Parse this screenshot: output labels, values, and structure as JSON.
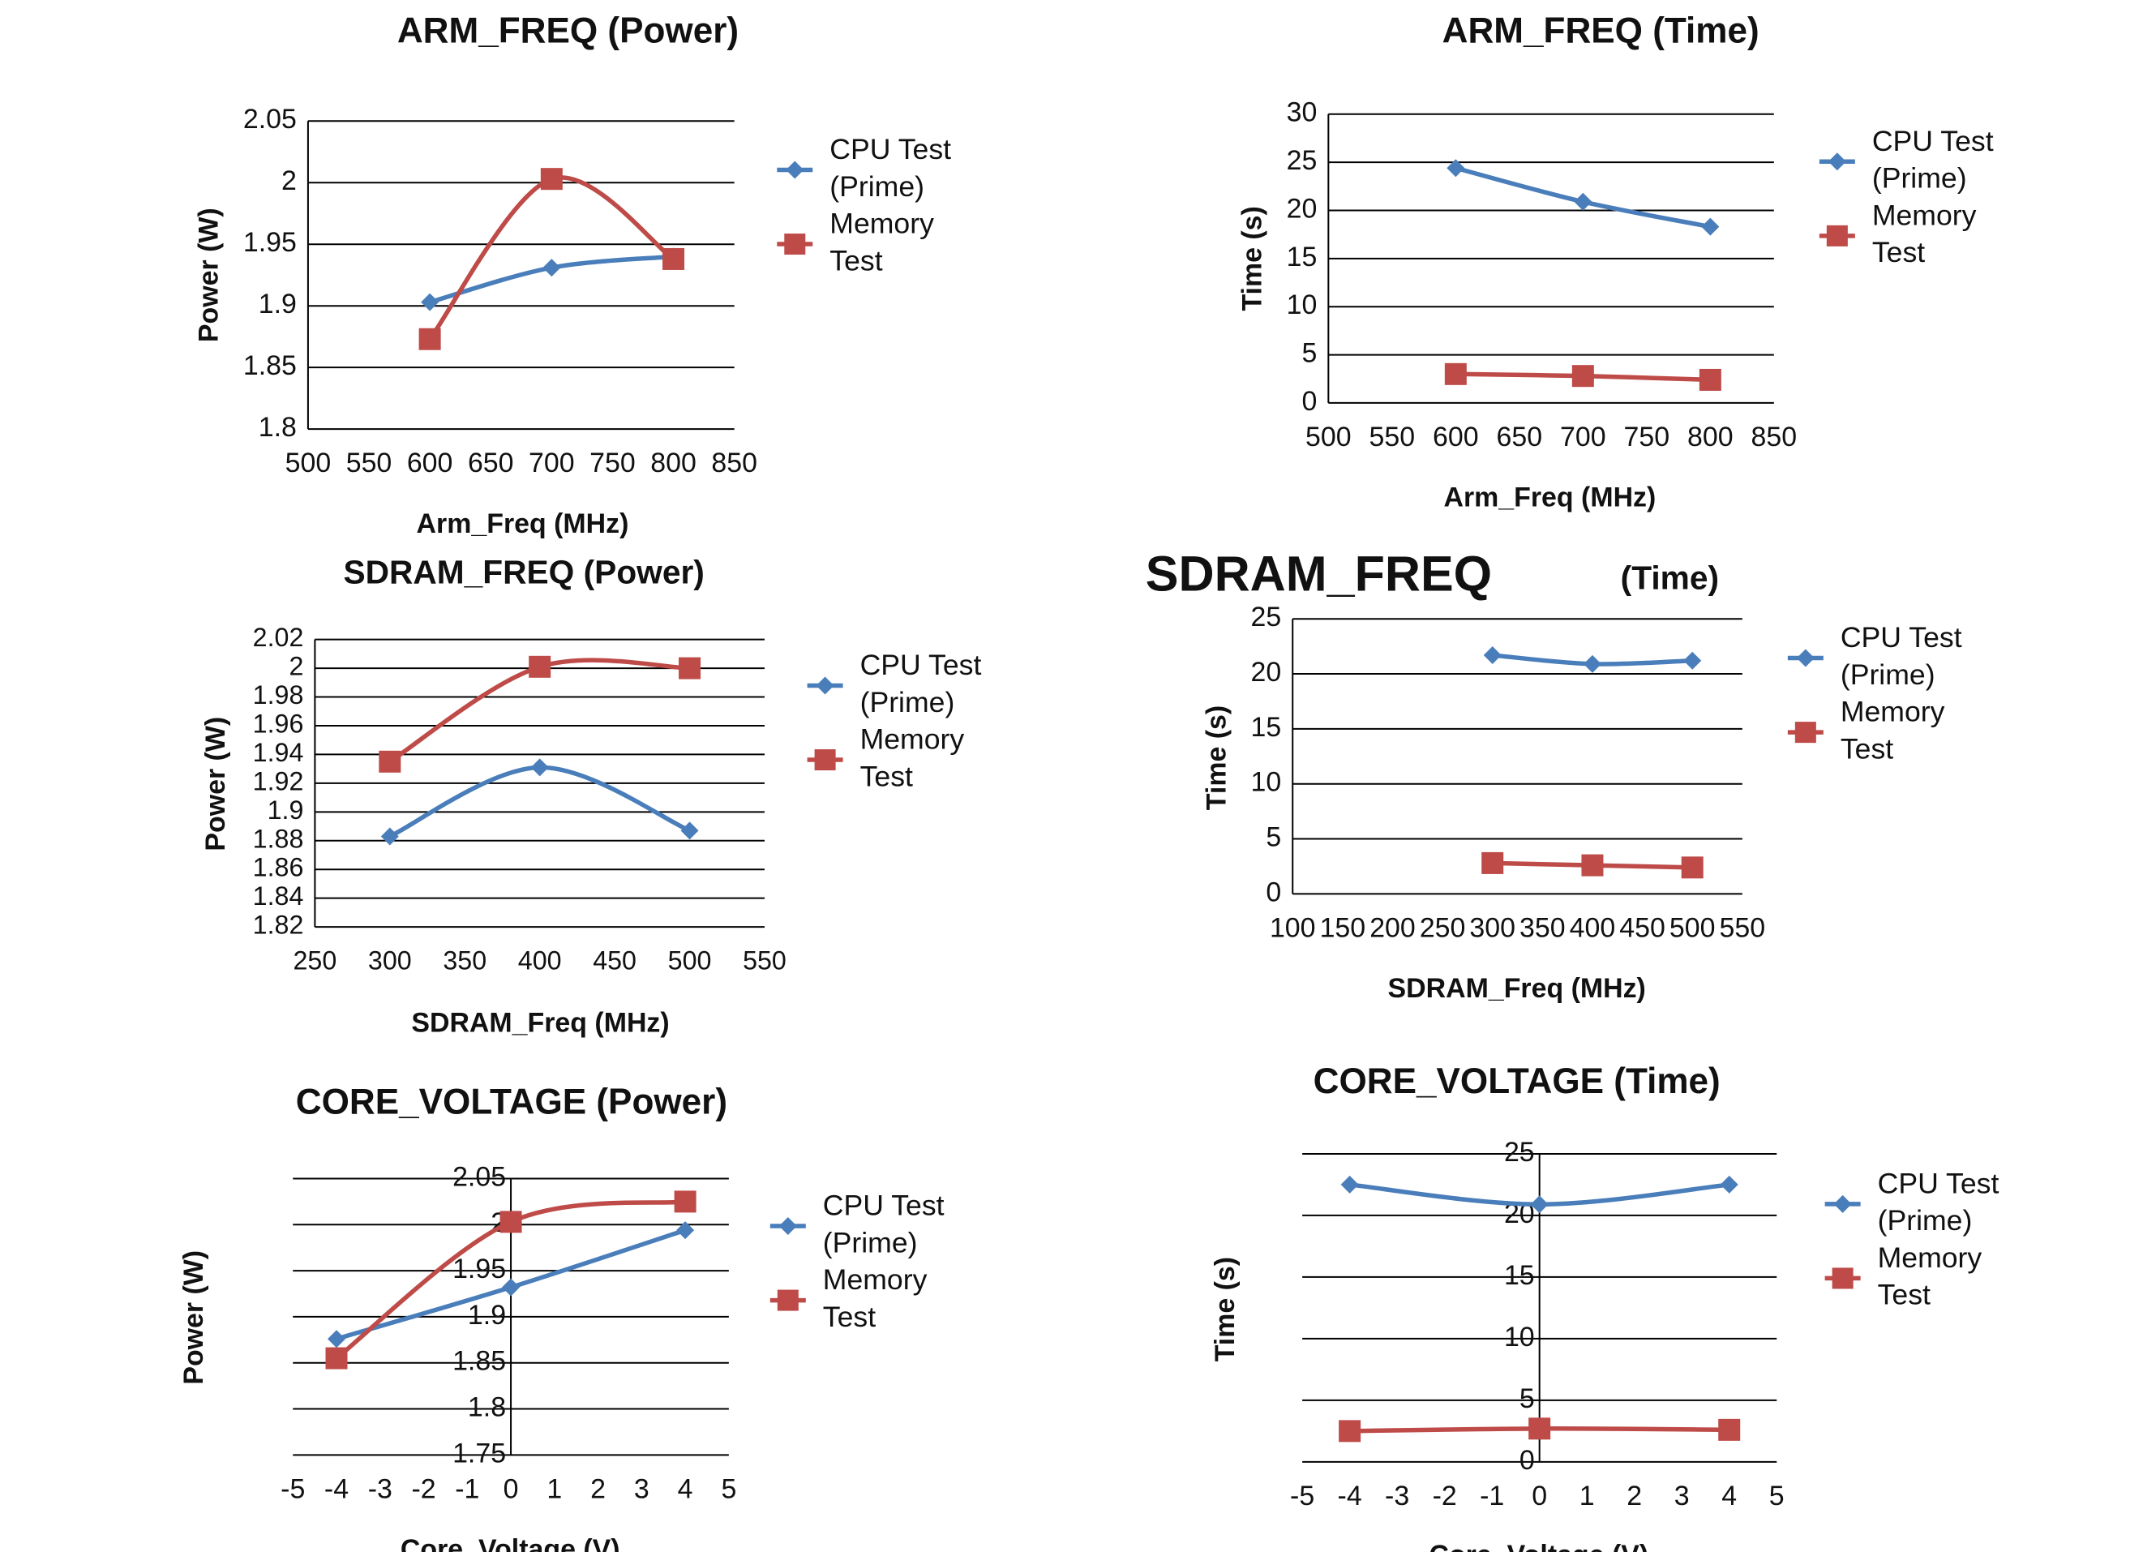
{
  "colors": {
    "cpu": "#4a7ebb",
    "memory": "#be4b48",
    "grid": "#000000",
    "axis": "#888888"
  },
  "chart_data": [
    {
      "id": "arm_power",
      "type": "line",
      "title": "ARM_FREQ (Power)",
      "xlabel": "Arm_Freq (MHz)",
      "ylabel": "Power (W)",
      "xlim": [
        500,
        850
      ],
      "ylim": [
        1.8,
        2.05
      ],
      "xticks": [
        "500",
        "550",
        "600",
        "650",
        "700",
        "750",
        "800",
        "850"
      ],
      "yticks": [
        "1.8",
        "1.85",
        "1.9",
        "1.95",
        "2",
        "2.05"
      ],
      "x": [
        600,
        700,
        800
      ],
      "series": [
        {
          "name": "CPU Test (Prime)",
          "values": [
            1.903,
            1.931,
            1.94
          ]
        },
        {
          "name": "Memory Test",
          "values": [
            1.873,
            2.003,
            1.938
          ]
        }
      ],
      "legend": [
        "CPU Test",
        "(Prime)",
        "Memory",
        "Test"
      ],
      "legend_position": "right",
      "y_axis_at": "left"
    },
    {
      "id": "arm_time",
      "type": "line",
      "title": "ARM_FREQ (Time)",
      "xlabel": "Arm_Freq (MHz)",
      "ylabel": "Time (s)",
      "xlim": [
        500,
        850
      ],
      "ylim": [
        0,
        30
      ],
      "xticks": [
        "500",
        "550",
        "600",
        "650",
        "700",
        "750",
        "800",
        "850"
      ],
      "yticks": [
        "0",
        "5",
        "10",
        "15",
        "20",
        "25",
        "30"
      ],
      "x": [
        600,
        700,
        800
      ],
      "series": [
        {
          "name": "CPU Test (Prime)",
          "values": [
            24.4,
            20.9,
            18.3
          ]
        },
        {
          "name": "Memory Test",
          "values": [
            3.0,
            2.8,
            2.4
          ]
        }
      ],
      "legend": [
        "CPU Test",
        "(Prime)",
        "Memory",
        "Test"
      ],
      "legend_position": "right",
      "y_axis_at": "left"
    },
    {
      "id": "sdram_power",
      "type": "line",
      "title": "SDRAM_FREQ (Power)",
      "xlabel": "SDRAM_Freq (MHz)",
      "ylabel": "Power (W)",
      "xlim": [
        250,
        550
      ],
      "ylim": [
        1.82,
        2.02
      ],
      "xticks": [
        "250",
        "300",
        "350",
        "400",
        "450",
        "500",
        "550"
      ],
      "yticks": [
        "1.82",
        "1.84",
        "1.86",
        "1.88",
        "1.9",
        "1.92",
        "1.94",
        "1.96",
        "1.98",
        "2",
        "2.02"
      ],
      "x": [
        300,
        400,
        500
      ],
      "series": [
        {
          "name": "CPU Test (Prime)",
          "values": [
            1.883,
            1.931,
            1.887
          ]
        },
        {
          "name": "Memory Test",
          "values": [
            1.935,
            2.001,
            2.0
          ]
        }
      ],
      "legend": [
        "CPU Test",
        "(Prime)",
        "Memory",
        "Test"
      ],
      "legend_position": "right",
      "y_axis_at": "left"
    },
    {
      "id": "sdram_time",
      "type": "line",
      "title": "SDRAM_FREQ",
      "title_suffix": "(Time)",
      "xlabel": "SDRAM_Freq (MHz)",
      "ylabel": "Time (s)",
      "xlim": [
        100,
        550
      ],
      "ylim": [
        0,
        25
      ],
      "xticks": [
        "100",
        "150",
        "200",
        "250",
        "300",
        "350",
        "400",
        "450",
        "500",
        "550"
      ],
      "yticks": [
        "0",
        "5",
        "10",
        "15",
        "20",
        "25"
      ],
      "x": [
        300,
        400,
        500
      ],
      "series": [
        {
          "name": "CPU Test (Prime)",
          "values": [
            21.7,
            20.9,
            21.2
          ]
        },
        {
          "name": "Memory Test",
          "values": [
            2.8,
            2.6,
            2.4
          ]
        }
      ],
      "legend": [
        "CPU Test",
        "(Prime)",
        "Memory",
        "Test"
      ],
      "legend_position": "right",
      "y_axis_at": "left"
    },
    {
      "id": "core_power",
      "type": "line",
      "title": "CORE_VOLTAGE (Power)",
      "xlabel": "Core_Voltage (V)",
      "ylabel": "Power (W)",
      "xlim": [
        -5,
        5
      ],
      "ylim": [
        1.75,
        2.05
      ],
      "xticks": [
        "-5",
        "-4",
        "-3",
        "-2",
        "-1",
        "0",
        "1",
        "2",
        "3",
        "4",
        "5"
      ],
      "yticks": [
        "1.75",
        "1.8",
        "1.85",
        "1.9",
        "1.95",
        "2",
        "2.05"
      ],
      "x": [
        -4,
        0,
        4
      ],
      "series": [
        {
          "name": "CPU Test (Prime)",
          "values": [
            1.876,
            1.932,
            1.994
          ]
        },
        {
          "name": "Memory Test",
          "values": [
            1.855,
            2.003,
            2.025
          ]
        }
      ],
      "legend": [
        "CPU Test",
        "(Prime)",
        "Memory",
        "Test"
      ],
      "legend_position": "right",
      "y_axis_at": "zero"
    },
    {
      "id": "core_time",
      "type": "line",
      "title": "CORE_VOLTAGE (Time)",
      "xlabel": "Core_Voltage (V)",
      "ylabel": "Time (s)",
      "xlim": [
        -5,
        5
      ],
      "ylim": [
        0,
        25
      ],
      "xticks": [
        "-5",
        "-4",
        "-3",
        "-2",
        "-1",
        "0",
        "1",
        "2",
        "3",
        "4",
        "5"
      ],
      "yticks": [
        "0",
        "5",
        "10",
        "15",
        "20",
        "25"
      ],
      "x": [
        -4,
        0,
        4
      ],
      "series": [
        {
          "name": "CPU Test (Prime)",
          "values": [
            22.5,
            20.9,
            22.5
          ]
        },
        {
          "name": "Memory Test",
          "values": [
            2.5,
            2.7,
            2.6
          ]
        }
      ],
      "legend": [
        "CPU Test",
        "(Prime)",
        "Memory",
        "Test"
      ],
      "legend_position": "right",
      "y_axis_at": "zero"
    }
  ]
}
